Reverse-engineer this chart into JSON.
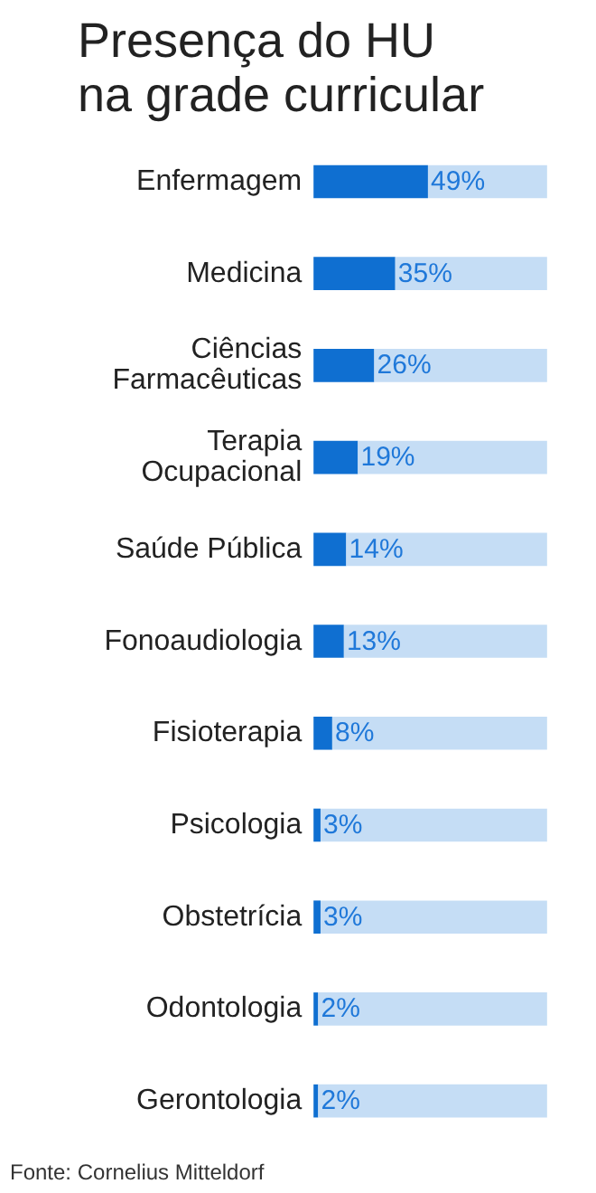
{
  "chart_data": {
    "type": "bar",
    "orientation": "horizontal",
    "title": "Presença do HU\nna grade curricular",
    "categories": [
      "Enfermagem",
      "Medicina",
      "Ciências\nFarmacêuticas",
      "Terapia\nOcupacional",
      "Saúde Pública",
      "Fonoaudiologia",
      "Fisioterapia",
      "Psicologia",
      "Obstetrícia",
      "Odontologia",
      "Gerontologia"
    ],
    "series": [
      {
        "color": "#0f6fd1",
        "values": [
          49,
          35,
          26,
          19,
          14,
          13,
          8,
          3,
          3,
          2,
          2
        ],
        "value_labels": [
          "49%",
          "35%",
          "26%",
          "19%",
          "14%",
          "13%",
          "8%",
          "3%",
          "3%",
          "2%",
          "2%"
        ]
      },
      {
        "color": "#c5ddf5",
        "values": [
          51,
          65,
          74,
          81,
          86,
          87,
          92,
          97,
          97,
          98,
          98
        ]
      }
    ],
    "stacked": true,
    "xlim": [
      0,
      100
    ],
    "tick_labels": false,
    "annotations": [
      "Fonte: Cornelius Mitteldorf"
    ],
    "grid": false
  }
}
